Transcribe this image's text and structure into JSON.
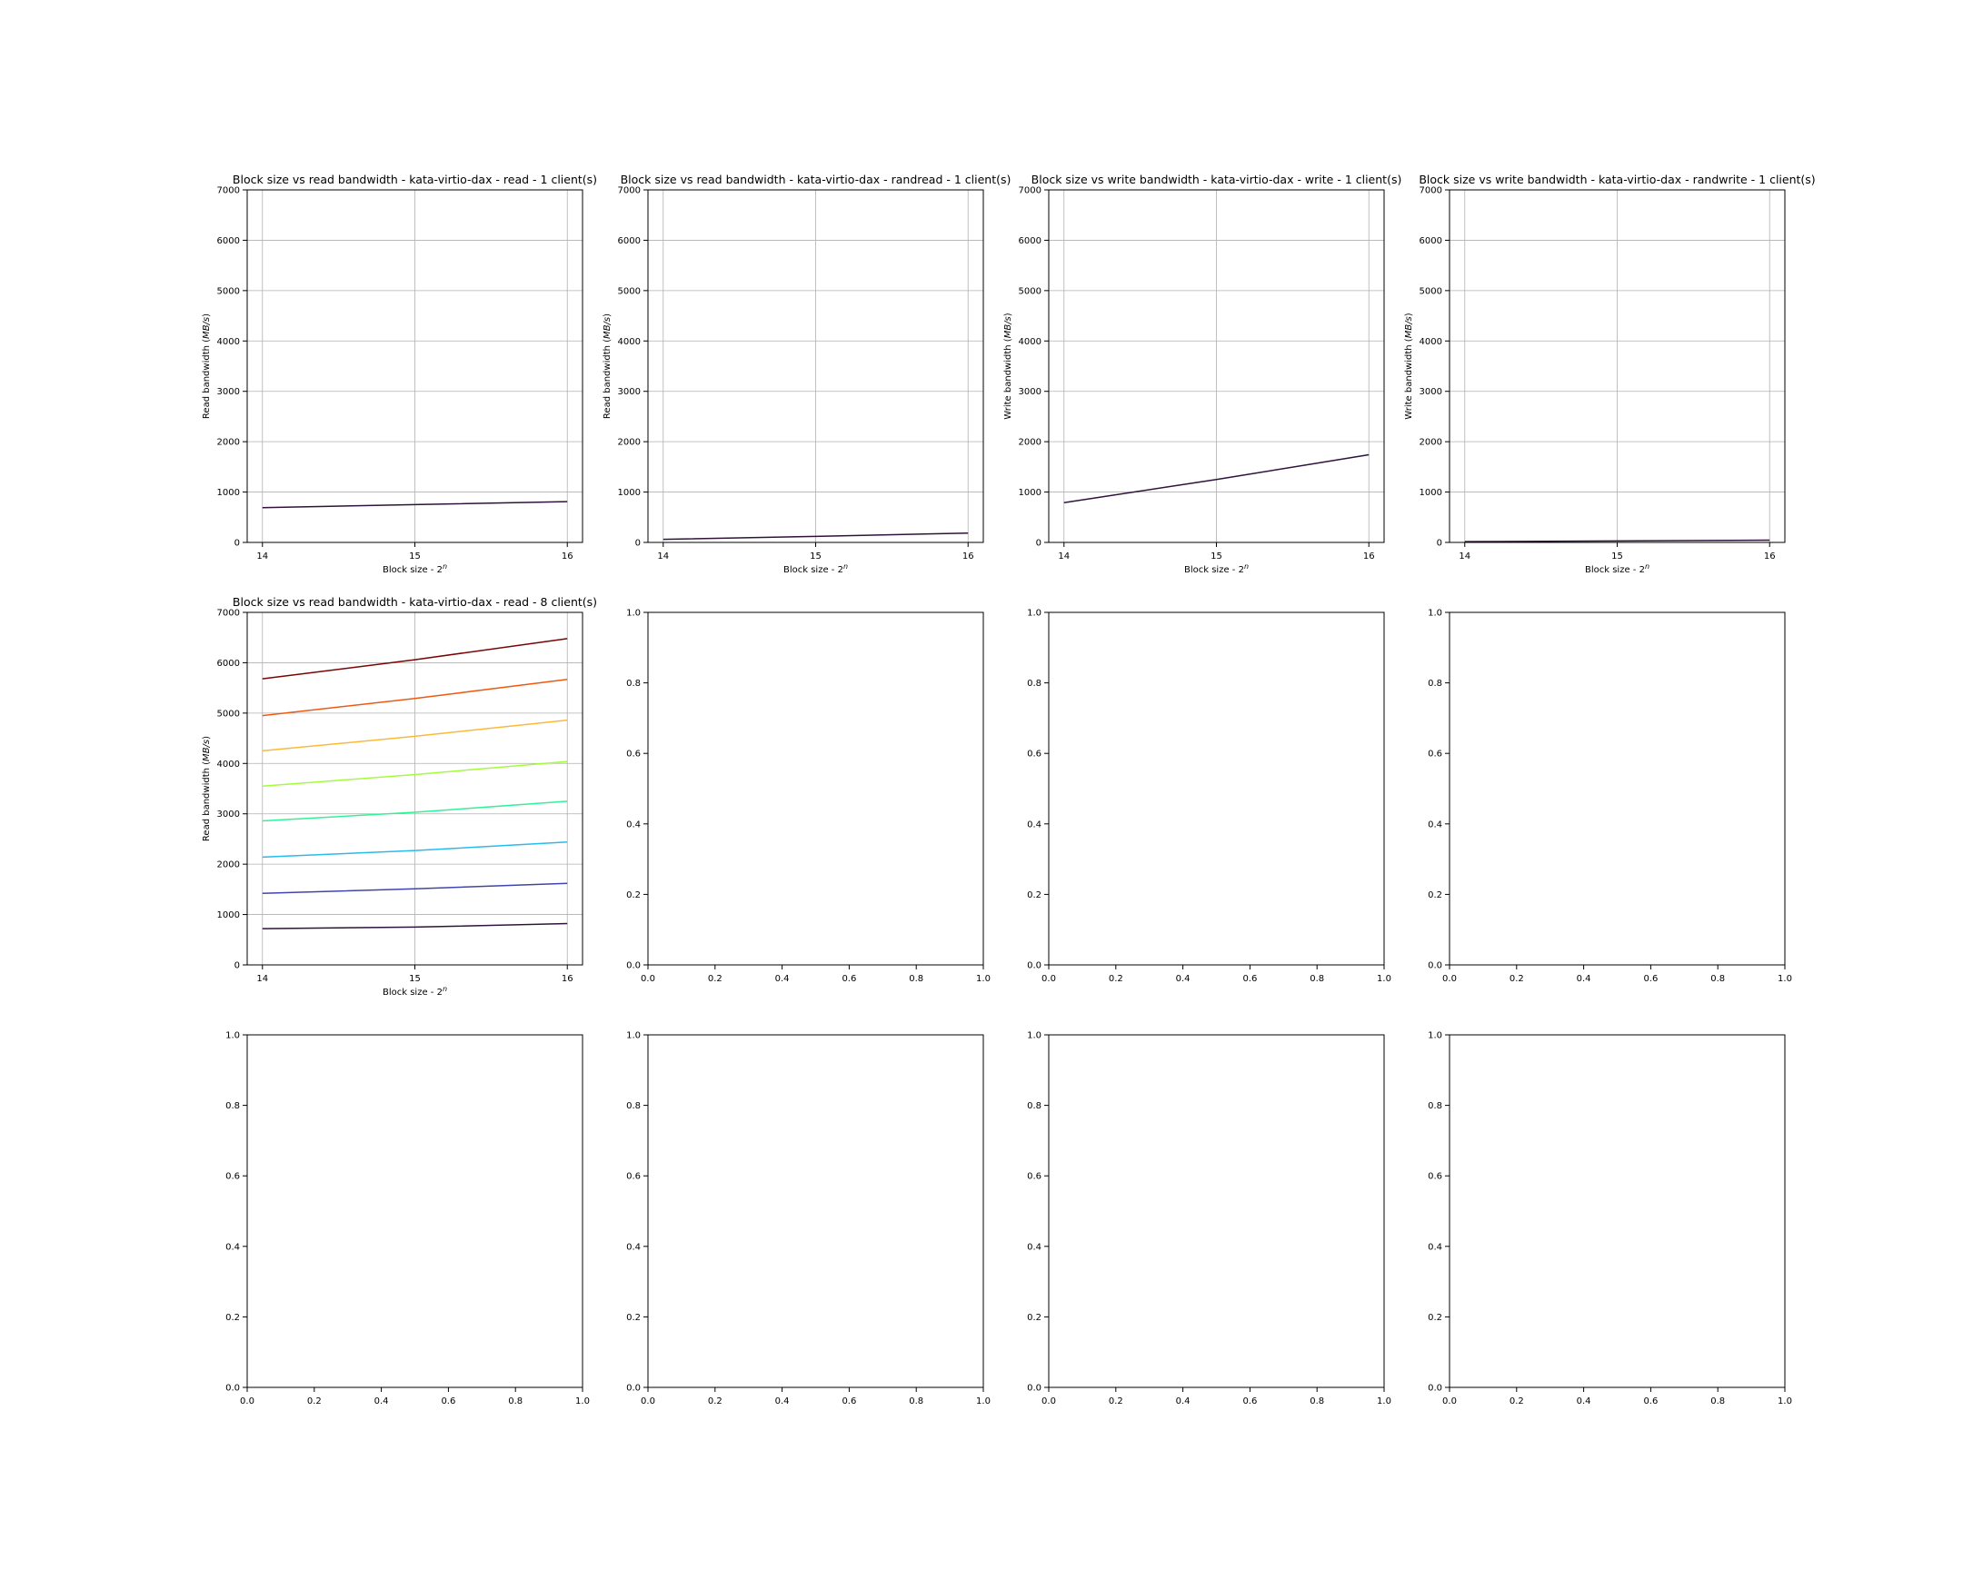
{
  "chart_data": [
    {
      "type": "line",
      "title": "Block size vs read bandwidth - kata-virtio-dax - read - 1 client(s)",
      "xlabel": "Block size - 2$^n$",
      "ylabel": "Read bandwidth ($MB/s$)",
      "xlim": [
        13.9,
        16.1
      ],
      "ylim": [
        0,
        7000
      ],
      "xticks": [
        14,
        15,
        16
      ],
      "xtick_labels": [
        "14",
        "15",
        "16"
      ],
      "yticks": [
        0,
        1000,
        2000,
        3000,
        4000,
        5000,
        6000,
        7000
      ],
      "ytick_labels": [
        "0",
        "1000",
        "2000",
        "3000",
        "4000",
        "5000",
        "6000",
        "7000"
      ],
      "grid": true,
      "x": [
        14,
        15,
        16
      ],
      "series": [
        {
          "color": "#30123b",
          "values": [
            690,
            750,
            810
          ]
        }
      ]
    },
    {
      "type": "line",
      "title": "Block size vs read bandwidth - kata-virtio-dax - randread - 1 client(s)",
      "xlabel": "Block size - 2$^n$",
      "ylabel": "Read bandwidth ($MB/s$)",
      "xlim": [
        13.9,
        16.1
      ],
      "ylim": [
        0,
        7000
      ],
      "xticks": [
        14,
        15,
        16
      ],
      "xtick_labels": [
        "14",
        "15",
        "16"
      ],
      "yticks": [
        0,
        1000,
        2000,
        3000,
        4000,
        5000,
        6000,
        7000
      ],
      "ytick_labels": [
        "0",
        "1000",
        "2000",
        "3000",
        "4000",
        "5000",
        "6000",
        "7000"
      ],
      "grid": true,
      "x": [
        14,
        15,
        16
      ],
      "series": [
        {
          "color": "#30123b",
          "values": [
            60,
            120,
            185
          ]
        }
      ]
    },
    {
      "type": "line",
      "title": "Block size vs write bandwidth - kata-virtio-dax - write - 1 client(s)",
      "xlabel": "Block size - 2$^n$",
      "ylabel": "Write bandwidth ($MB/s$)",
      "xlim": [
        13.9,
        16.1
      ],
      "ylim": [
        0,
        7000
      ],
      "xticks": [
        14,
        15,
        16
      ],
      "xtick_labels": [
        "14",
        "15",
        "16"
      ],
      "yticks": [
        0,
        1000,
        2000,
        3000,
        4000,
        5000,
        6000,
        7000
      ],
      "ytick_labels": [
        "0",
        "1000",
        "2000",
        "3000",
        "4000",
        "5000",
        "6000",
        "7000"
      ],
      "grid": true,
      "x": [
        14,
        15,
        16
      ],
      "series": [
        {
          "color": "#30123b",
          "values": [
            790,
            1250,
            1740
          ]
        }
      ]
    },
    {
      "type": "line",
      "title": "Block size vs write bandwidth - kata-virtio-dax - randwrite - 1 client(s)",
      "xlabel": "Block size - 2$^n$",
      "ylabel": "Write bandwidth ($MB/s$)",
      "xlim": [
        13.9,
        16.1
      ],
      "ylim": [
        0,
        7000
      ],
      "xticks": [
        14,
        15,
        16
      ],
      "xtick_labels": [
        "14",
        "15",
        "16"
      ],
      "yticks": [
        0,
        1000,
        2000,
        3000,
        4000,
        5000,
        6000,
        7000
      ],
      "ytick_labels": [
        "0",
        "1000",
        "2000",
        "3000",
        "4000",
        "5000",
        "6000",
        "7000"
      ],
      "grid": true,
      "x": [
        14,
        15,
        16
      ],
      "series": [
        {
          "color": "#30123b",
          "values": [
            15,
            30,
            45
          ]
        }
      ]
    },
    {
      "type": "line",
      "title": "Block size vs read bandwidth - kata-virtio-dax - read - 8 client(s)",
      "xlabel": "Block size - 2$^n$",
      "ylabel": "Read bandwidth ($MB/s$)",
      "xlim": [
        13.9,
        16.1
      ],
      "ylim": [
        0,
        7000
      ],
      "xticks": [
        14,
        15,
        16
      ],
      "xtick_labels": [
        "14",
        "15",
        "16"
      ],
      "yticks": [
        0,
        1000,
        2000,
        3000,
        4000,
        5000,
        6000,
        7000
      ],
      "ytick_labels": [
        "0",
        "1000",
        "2000",
        "3000",
        "4000",
        "5000",
        "6000",
        "7000"
      ],
      "grid": true,
      "x": [
        14,
        15,
        16
      ],
      "series": [
        {
          "color": "#30123b",
          "values": [
            720,
            750,
            820
          ]
        },
        {
          "color": "#4145ab",
          "values": [
            1420,
            1510,
            1620
          ]
        },
        {
          "color": "#28bceb",
          "values": [
            2140,
            2270,
            2440
          ]
        },
        {
          "color": "#32f298",
          "values": [
            2860,
            3030,
            3250
          ]
        },
        {
          "color": "#a4fc3c",
          "values": [
            3550,
            3780,
            4040
          ]
        },
        {
          "color": "#fbb938",
          "values": [
            4250,
            4540,
            4860
          ]
        },
        {
          "color": "#ee5a12",
          "values": [
            4950,
            5290,
            5670
          ]
        },
        {
          "color": "#7a0403",
          "values": [
            5680,
            6060,
            6480
          ]
        }
      ]
    },
    {
      "type": "line",
      "title": "",
      "xlabel": "",
      "ylabel": "",
      "xlim": [
        0,
        1
      ],
      "ylim": [
        0,
        1
      ],
      "xticks": [
        0,
        0.2,
        0.4,
        0.6,
        0.8,
        1.0
      ],
      "xtick_labels": [
        "0.0",
        "0.2",
        "0.4",
        "0.6",
        "0.8",
        "1.0"
      ],
      "yticks": [
        0,
        0.2,
        0.4,
        0.6,
        0.8,
        1.0
      ],
      "ytick_labels": [
        "0.0",
        "0.2",
        "0.4",
        "0.6",
        "0.8",
        "1.0"
      ],
      "grid": false,
      "x": [],
      "series": []
    },
    {
      "type": "line",
      "title": "",
      "xlabel": "",
      "ylabel": "",
      "xlim": [
        0,
        1
      ],
      "ylim": [
        0,
        1
      ],
      "xticks": [
        0,
        0.2,
        0.4,
        0.6,
        0.8,
        1.0
      ],
      "xtick_labels": [
        "0.0",
        "0.2",
        "0.4",
        "0.6",
        "0.8",
        "1.0"
      ],
      "yticks": [
        0,
        0.2,
        0.4,
        0.6,
        0.8,
        1.0
      ],
      "ytick_labels": [
        "0.0",
        "0.2",
        "0.4",
        "0.6",
        "0.8",
        "1.0"
      ],
      "grid": false,
      "x": [],
      "series": []
    },
    {
      "type": "line",
      "title": "",
      "xlabel": "",
      "ylabel": "",
      "xlim": [
        0,
        1
      ],
      "ylim": [
        0,
        1
      ],
      "xticks": [
        0,
        0.2,
        0.4,
        0.6,
        0.8,
        1.0
      ],
      "xtick_labels": [
        "0.0",
        "0.2",
        "0.4",
        "0.6",
        "0.8",
        "1.0"
      ],
      "yticks": [
        0,
        0.2,
        0.4,
        0.6,
        0.8,
        1.0
      ],
      "ytick_labels": [
        "0.0",
        "0.2",
        "0.4",
        "0.6",
        "0.8",
        "1.0"
      ],
      "grid": false,
      "x": [],
      "series": []
    },
    {
      "type": "line",
      "title": "",
      "xlabel": "",
      "ylabel": "",
      "xlim": [
        0,
        1
      ],
      "ylim": [
        0,
        1
      ],
      "xticks": [
        0,
        0.2,
        0.4,
        0.6,
        0.8,
        1.0
      ],
      "xtick_labels": [
        "0.0",
        "0.2",
        "0.4",
        "0.6",
        "0.8",
        "1.0"
      ],
      "yticks": [
        0,
        0.2,
        0.4,
        0.6,
        0.8,
        1.0
      ],
      "ytick_labels": [
        "0.0",
        "0.2",
        "0.4",
        "0.6",
        "0.8",
        "1.0"
      ],
      "grid": false,
      "x": [],
      "series": []
    },
    {
      "type": "line",
      "title": "",
      "xlabel": "",
      "ylabel": "",
      "xlim": [
        0,
        1
      ],
      "ylim": [
        0,
        1
      ],
      "xticks": [
        0,
        0.2,
        0.4,
        0.6,
        0.8,
        1.0
      ],
      "xtick_labels": [
        "0.0",
        "0.2",
        "0.4",
        "0.6",
        "0.8",
        "1.0"
      ],
      "yticks": [
        0,
        0.2,
        0.4,
        0.6,
        0.8,
        1.0
      ],
      "ytick_labels": [
        "0.0",
        "0.2",
        "0.4",
        "0.6",
        "0.8",
        "1.0"
      ],
      "grid": false,
      "x": [],
      "series": []
    },
    {
      "type": "line",
      "title": "",
      "xlabel": "",
      "ylabel": "",
      "xlim": [
        0,
        1
      ],
      "ylim": [
        0,
        1
      ],
      "xticks": [
        0,
        0.2,
        0.4,
        0.6,
        0.8,
        1.0
      ],
      "xtick_labels": [
        "0.0",
        "0.2",
        "0.4",
        "0.6",
        "0.8",
        "1.0"
      ],
      "yticks": [
        0,
        0.2,
        0.4,
        0.6,
        0.8,
        1.0
      ],
      "ytick_labels": [
        "0.0",
        "0.2",
        "0.4",
        "0.6",
        "0.8",
        "1.0"
      ],
      "grid": false,
      "x": [],
      "series": []
    },
    {
      "type": "line",
      "title": "",
      "xlabel": "",
      "ylabel": "",
      "xlim": [
        0,
        1
      ],
      "ylim": [
        0,
        1
      ],
      "xticks": [
        0,
        0.2,
        0.4,
        0.6,
        0.8,
        1.0
      ],
      "xtick_labels": [
        "0.0",
        "0.2",
        "0.4",
        "0.6",
        "0.8",
        "1.0"
      ],
      "yticks": [
        0,
        0.2,
        0.4,
        0.6,
        0.8,
        1.0
      ],
      "ytick_labels": [
        "0.0",
        "0.2",
        "0.4",
        "0.6",
        "0.8",
        "1.0"
      ],
      "grid": false,
      "x": [],
      "series": []
    }
  ]
}
